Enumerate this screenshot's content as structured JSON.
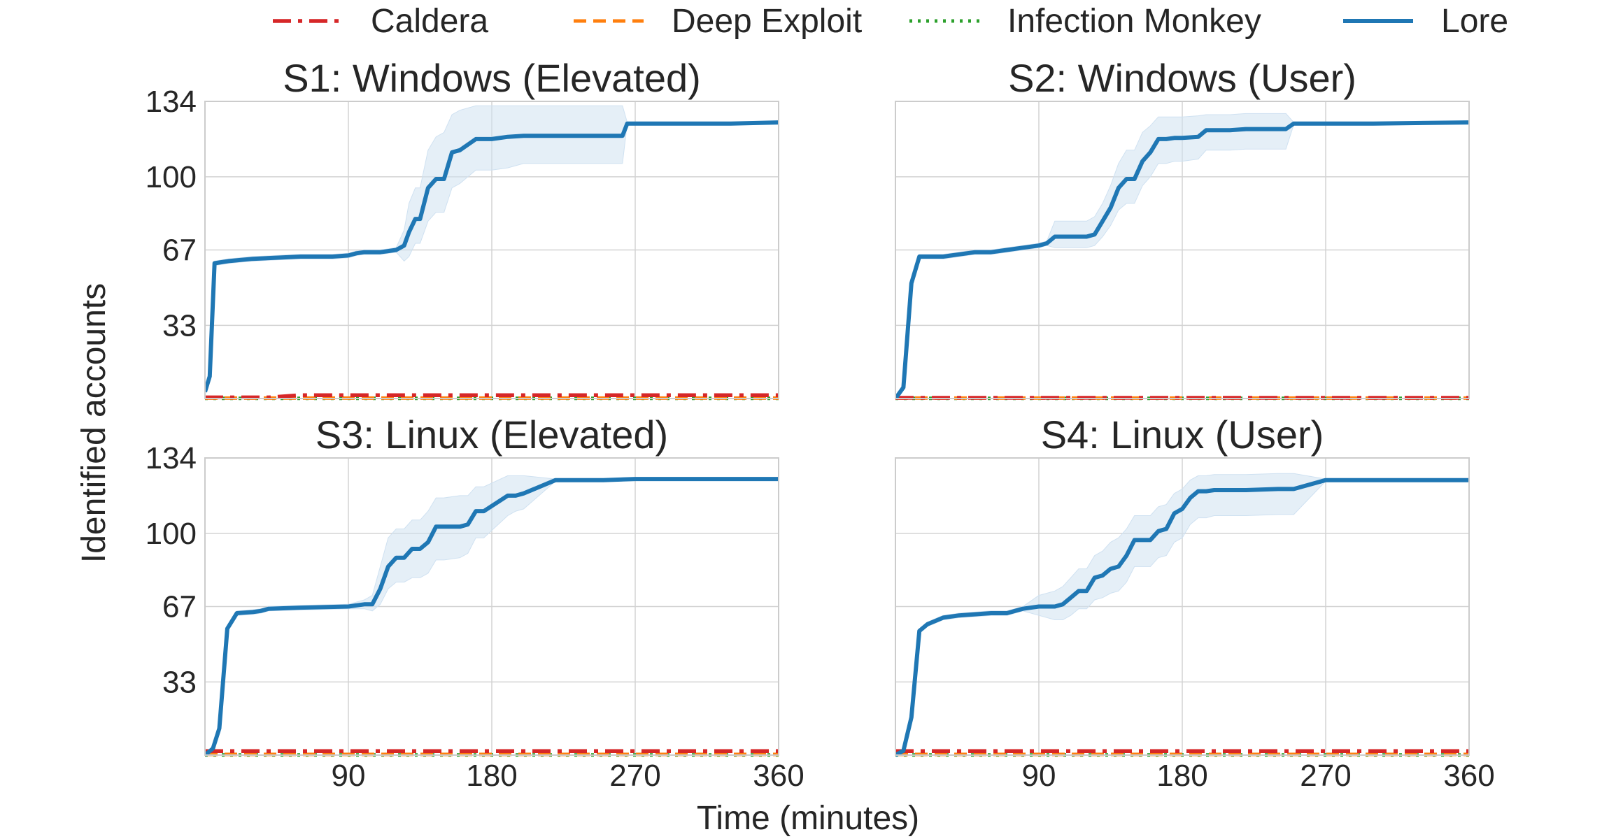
{
  "figure": {
    "xlabel": "Time (minutes)",
    "ylabel": "Identified accounts"
  },
  "colors": {
    "caldera": "#d62728",
    "deep_exploit": "#ff7f0e",
    "infection_monkey": "#2ca02c",
    "lore": "#1f77b4",
    "lore_band": "#cfe1f1"
  },
  "legend": {
    "position": "top-center",
    "items": [
      {
        "label": "Caldera",
        "style": "dashdot",
        "color": "#d62728"
      },
      {
        "label": "Deep Exploit",
        "style": "dashed",
        "color": "#ff7f0e"
      },
      {
        "label": "Infection Monkey",
        "style": "dotted",
        "color": "#2ca02c"
      },
      {
        "label": "Lore",
        "style": "solid",
        "color": "#1f77b4"
      }
    ]
  },
  "chart_data": [
    {
      "type": "line",
      "title": "S1: Windows (Elevated)",
      "xlim": [
        0,
        360
      ],
      "ylim": [
        0,
        134
      ],
      "xticks": [],
      "yticks": [
        33,
        67,
        100,
        134
      ],
      "grid": true,
      "series": [
        {
          "name": "Lore",
          "style": "solid",
          "x": [
            0,
            3,
            6,
            15,
            30,
            45,
            60,
            80,
            90,
            95,
            100,
            110,
            115,
            120,
            125,
            128,
            132,
            135,
            140,
            145,
            150,
            155,
            160,
            170,
            180,
            190,
            200,
            220,
            240,
            262,
            265,
            300,
            330,
            360
          ],
          "y": [
            3,
            10,
            61,
            62,
            63,
            63.5,
            64,
            64,
            64.5,
            65.5,
            66,
            66,
            66.5,
            67,
            69,
            75,
            81,
            81,
            95,
            99,
            99,
            111,
            112,
            117,
            117,
            118,
            118.5,
            118.5,
            118.5,
            118.5,
            124,
            124,
            124,
            124.5
          ],
          "lower": [
            3,
            10,
            60,
            61,
            62,
            62.5,
            63,
            63,
            63.5,
            64.5,
            65,
            65,
            65.5,
            66,
            62,
            64,
            70,
            70,
            80,
            84,
            84,
            95,
            97,
            103,
            103,
            104,
            106,
            106,
            106,
            106,
            124,
            124,
            124,
            124
          ],
          "upper": [
            3,
            10,
            62,
            63,
            64,
            64.5,
            65,
            65,
            65.5,
            66.5,
            67,
            67,
            67.5,
            68,
            76,
            88,
            95,
            95,
            112,
            118,
            120,
            128,
            130,
            132,
            132,
            132,
            132,
            132,
            132,
            132,
            124.5,
            124.5,
            124.5,
            125
          ]
        },
        {
          "name": "Caldera",
          "style": "dashdot",
          "x": [
            0,
            40,
            60,
            360
          ],
          "y": [
            0.5,
            0.5,
            1.5,
            1.5
          ]
        },
        {
          "name": "Deep Exploit",
          "style": "dashed",
          "x": [
            0,
            360
          ],
          "y": [
            0.2,
            0.2
          ]
        },
        {
          "name": "Infection Monkey",
          "style": "dotted",
          "x": [
            0,
            360
          ],
          "y": [
            0.1,
            0.1
          ]
        }
      ]
    },
    {
      "type": "line",
      "title": "S2: Windows (User)",
      "xlim": [
        0,
        360
      ],
      "ylim": [
        0,
        134
      ],
      "xticks": [],
      "yticks": [],
      "grid": true,
      "series": [
        {
          "name": "Lore",
          "style": "solid",
          "x": [
            0,
            5,
            10,
            15,
            20,
            30,
            40,
            50,
            60,
            70,
            80,
            90,
            95,
            100,
            110,
            120,
            125,
            130,
            135,
            140,
            145,
            150,
            155,
            160,
            165,
            170,
            175,
            180,
            190,
            195,
            200,
            210,
            220,
            240,
            245,
            250,
            300,
            360
          ],
          "y": [
            0,
            5,
            52,
            64,
            64,
            64,
            65,
            66,
            66,
            67,
            68,
            69,
            70,
            73,
            73,
            73,
            74,
            80,
            86,
            95,
            99,
            99,
            107,
            111,
            117,
            117,
            117.5,
            117.5,
            118,
            121,
            121,
            121,
            121.5,
            121.5,
            121.5,
            124,
            124,
            124.5
          ],
          "lower": [
            0,
            5,
            51,
            63,
            63,
            63,
            64,
            65,
            65,
            66,
            67,
            68,
            69,
            68,
            68,
            68,
            69,
            73,
            78,
            85,
            88,
            88,
            96,
            100,
            106,
            106,
            107,
            107,
            108,
            112,
            112,
            112,
            112.5,
            112.5,
            112.5,
            123.5,
            123.5,
            124
          ],
          "upper": [
            0,
            5,
            53,
            65,
            65,
            65,
            66,
            67,
            67,
            68,
            69,
            70,
            71,
            80,
            80,
            80,
            82,
            88,
            96,
            106,
            112,
            112,
            120,
            123,
            127,
            127,
            127,
            127,
            127.5,
            128,
            128,
            128,
            128.5,
            128.5,
            128.5,
            124.5,
            124.5,
            125
          ]
        },
        {
          "name": "Caldera",
          "style": "dashdot",
          "x": [
            0,
            360
          ],
          "y": [
            0.3,
            0.3
          ]
        },
        {
          "name": "Deep Exploit",
          "style": "dashed",
          "x": [
            0,
            360
          ],
          "y": [
            0.2,
            0.2
          ]
        },
        {
          "name": "Infection Monkey",
          "style": "dotted",
          "x": [
            0,
            360
          ],
          "y": [
            0.1,
            0.1
          ]
        }
      ]
    },
    {
      "type": "line",
      "title": "S3: Linux (Elevated)",
      "xlim": [
        0,
        360
      ],
      "ylim": [
        0,
        134
      ],
      "xticks": [
        90,
        180,
        270,
        360
      ],
      "yticks": [
        33,
        67,
        100,
        134
      ],
      "grid": true,
      "series": [
        {
          "name": "Lore",
          "style": "solid",
          "x": [
            0,
            5,
            9,
            14,
            20,
            30,
            35,
            40,
            60,
            90,
            100,
            105,
            110,
            115,
            120,
            125,
            130,
            135,
            140,
            145,
            150,
            160,
            165,
            170,
            175,
            190,
            195,
            200,
            220,
            250,
            270,
            300,
            360
          ],
          "y": [
            0,
            3,
            12,
            57,
            64,
            64.5,
            65,
            66,
            66.5,
            67,
            68,
            68,
            75,
            85,
            89,
            89,
            93,
            93,
            96,
            103,
            103,
            103,
            104,
            110,
            110,
            117,
            117,
            118,
            124,
            124,
            124.5,
            124.5,
            124.5
          ],
          "lower": [
            0,
            3,
            12,
            56,
            63,
            63.5,
            64,
            65,
            65.5,
            66,
            66,
            65,
            68,
            75,
            78,
            78,
            80,
            80,
            82,
            88,
            88,
            89,
            91,
            98,
            98,
            108,
            110,
            111,
            123.5,
            123.5,
            124,
            124,
            124
          ],
          "upper": [
            0,
            3,
            12,
            58,
            65,
            65.5,
            66,
            67,
            67.5,
            68,
            70,
            72,
            85,
            98,
            102,
            102,
            106,
            106,
            110,
            116,
            116,
            117,
            117,
            121,
            121,
            126,
            126,
            126,
            124.5,
            124.5,
            125,
            125,
            125
          ]
        },
        {
          "name": "Caldera",
          "style": "dashdot",
          "x": [
            0,
            360
          ],
          "y": [
            1.8,
            1.8
          ]
        },
        {
          "name": "Deep Exploit",
          "style": "dashed",
          "x": [
            0,
            360
          ],
          "y": [
            0.3,
            0.3
          ]
        },
        {
          "name": "Infection Monkey",
          "style": "dotted",
          "x": [
            0,
            360
          ],
          "y": [
            0.1,
            0.1
          ]
        }
      ]
    },
    {
      "type": "line",
      "title": "S4: Linux (User)",
      "xlim": [
        0,
        360
      ],
      "ylim": [
        0,
        134
      ],
      "xticks": [
        90,
        180,
        270,
        360
      ],
      "yticks": [],
      "grid": true,
      "series": [
        {
          "name": "Lore",
          "style": "solid",
          "x": [
            0,
            5,
            10,
            15,
            20,
            30,
            40,
            60,
            70,
            75,
            80,
            90,
            100,
            105,
            110,
            115,
            120,
            125,
            130,
            135,
            140,
            145,
            150,
            160,
            165,
            170,
            175,
            180,
            185,
            190,
            195,
            200,
            220,
            240,
            250,
            270,
            300,
            360
          ],
          "y": [
            0,
            2,
            17,
            56,
            59,
            62,
            63,
            64,
            64,
            65,
            66,
            67,
            67,
            68,
            71,
            74,
            74,
            80,
            81,
            84,
            85,
            90,
            97,
            97,
            101,
            102,
            109,
            111,
            116,
            119,
            119,
            119.5,
            119.5,
            120,
            120,
            124,
            124,
            124
          ],
          "lower": [
            0,
            2,
            17,
            55,
            58,
            61,
            62,
            63,
            63,
            64,
            65,
            63,
            61,
            61,
            63,
            66,
            66,
            70,
            71,
            73,
            74,
            78,
            85,
            85,
            89,
            90,
            96,
            98,
            104,
            107,
            107,
            108,
            108,
            108.5,
            108.5,
            123.5,
            123.5,
            123.5
          ],
          "upper": [
            0,
            2,
            17,
            57,
            60,
            63,
            64,
            65,
            65,
            66,
            67,
            72,
            74,
            76,
            80,
            84,
            84,
            90,
            92,
            96,
            98,
            102,
            108,
            108,
            112,
            113,
            118,
            120,
            124,
            126,
            126,
            126.5,
            126.5,
            127,
            127,
            124.5,
            124.5,
            124.5
          ]
        },
        {
          "name": "Caldera",
          "style": "dashdot",
          "x": [
            0,
            360
          ],
          "y": [
            1.8,
            1.8
          ]
        },
        {
          "name": "Deep Exploit",
          "style": "dashed",
          "x": [
            0,
            360
          ],
          "y": [
            0.3,
            0.3
          ]
        },
        {
          "name": "Infection Monkey",
          "style": "dotted",
          "x": [
            0,
            360
          ],
          "y": [
            0.1,
            0.1
          ]
        }
      ]
    }
  ]
}
